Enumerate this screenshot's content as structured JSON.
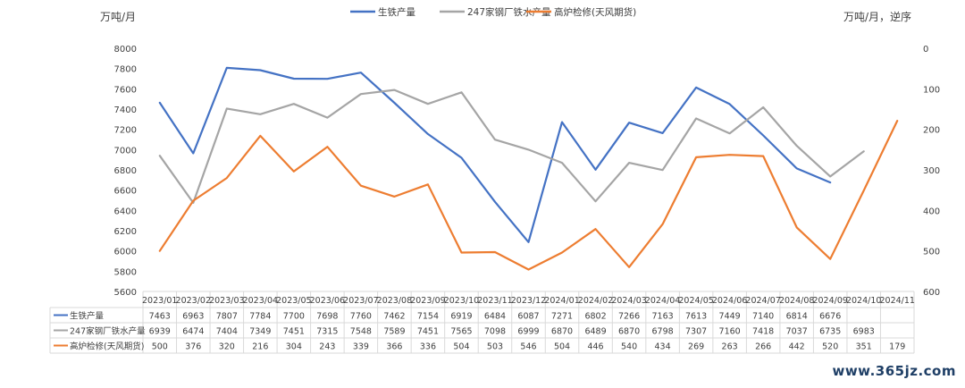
{
  "chart_data": {
    "type": "line",
    "left_unit": "万吨/月",
    "right_unit": "万吨/月，逆序",
    "categories": [
      "2023/01",
      "2023/02",
      "2023/03",
      "2023/04",
      "2023/05",
      "2023/06",
      "2023/07",
      "2023/08",
      "2023/09",
      "2023/10",
      "2023/11",
      "2023/12",
      "2024/01",
      "2024/02",
      "2024/03",
      "2024/04",
      "2024/05",
      "2024/06",
      "2024/07",
      "2024/08",
      "2024/09",
      "2024/10",
      "2024/11"
    ],
    "left_axis": {
      "min": 5600,
      "max": 8000,
      "ticks": [
        5600,
        5800,
        6000,
        6200,
        6400,
        6600,
        6800,
        7000,
        7200,
        7400,
        7600,
        7800,
        8000
      ]
    },
    "right_axis": {
      "min": 0,
      "max": 600,
      "reversed": true,
      "ticks": [
        0,
        100,
        200,
        300,
        400,
        500,
        600
      ]
    },
    "series": [
      {
        "name": "生铁产量",
        "axis": "left",
        "color": "#4472C4",
        "values": [
          7463,
          6963,
          7807,
          7784,
          7700,
          7698,
          7760,
          7462,
          7154,
          6919,
          6484,
          6087,
          7271,
          6802,
          7266,
          7163,
          7613,
          7449,
          7140,
          6814,
          6676,
          null,
          null
        ]
      },
      {
        "name": "247家钢厂铁水产量",
        "axis": "left",
        "color": "#A5A5A5",
        "values": [
          6939,
          6474,
          7404,
          7349,
          7451,
          7315,
          7548,
          7589,
          7451,
          7565,
          7098,
          6999,
          6870,
          6489,
          6870,
          6798,
          7307,
          7160,
          7418,
          7037,
          6735,
          6983,
          null
        ]
      },
      {
        "name": "高炉检修(天风期货)",
        "axis": "right",
        "color": "#ED7D31",
        "values": [
          500,
          376,
          320,
          216,
          304,
          243,
          339,
          366,
          336,
          504,
          503,
          546,
          504,
          446,
          540,
          434,
          269,
          263,
          266,
          442,
          520,
          351,
          179
        ]
      }
    ]
  },
  "watermark": "www.365jz.com"
}
